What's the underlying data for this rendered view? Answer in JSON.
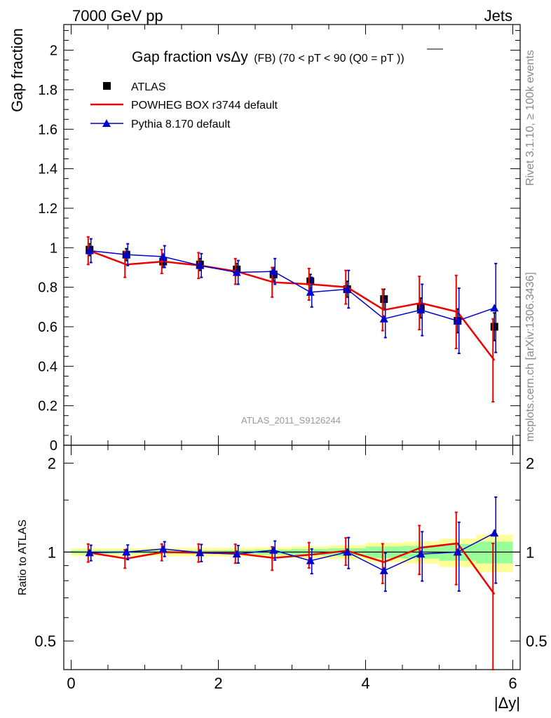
{
  "header": {
    "left": "7000 GeV pp",
    "right": "Jets"
  },
  "side": {
    "top": "Rivet 3.1.10, ≥ 100k events",
    "bottom": "mcplots.cern.ch [arXiv:1306.3436]"
  },
  "watermark": "ATLAS_2011_S9126244",
  "colors": {
    "atlas": "#000000",
    "powheg": "#ee0000",
    "pythia": "#0000cc",
    "band_inner": "#99ff99",
    "band_outer": "#ffff99"
  },
  "chart_data": [
    {
      "type": "line",
      "title_main": "Gap fraction vsΔy",
      "title_sub": "(FB) (70 < pT <  90 (Q0 =",
      "title_over": "pT",
      "title_end": "))",
      "ylabel": "Gap fraction",
      "xlim": [
        -0.1,
        6.1
      ],
      "ylim": [
        0,
        2.13
      ],
      "yticks": [
        0,
        0.2,
        0.4,
        0.6,
        0.8,
        1,
        1.2,
        1.4,
        1.6,
        1.8,
        2
      ],
      "ytick_labels": [
        "0",
        "0.2",
        "0.4",
        "0.6",
        "0.8",
        "1",
        "1.2",
        "1.4",
        "1.6",
        "1.8",
        "2"
      ],
      "legend": [
        "ATLAS",
        "POWHEG BOX r3744 default",
        "Pythia 8.170 default"
      ],
      "x": [
        0.25,
        0.75,
        1.25,
        1.75,
        2.25,
        2.75,
        3.25,
        3.75,
        4.25,
        4.75,
        5.25,
        5.75
      ],
      "series": [
        {
          "name": "ATLAS",
          "style": "marker",
          "values": [
            0.99,
            0.965,
            0.93,
            0.915,
            0.89,
            0.865,
            0.83,
            0.79,
            0.74,
            0.695,
            0.63,
            0.6
          ],
          "err": [
            0.03,
            0.03,
            0.03,
            0.03,
            0.03,
            0.035,
            0.035,
            0.04,
            0.05,
            0.05,
            0.06,
            0.07
          ]
        },
        {
          "name": "POWHEG BOX r3744 default",
          "style": "line",
          "values": [
            0.985,
            0.915,
            0.93,
            0.91,
            0.88,
            0.825,
            0.815,
            0.8,
            0.685,
            0.72,
            0.675,
            0.43
          ],
          "err": [
            0.07,
            0.065,
            0.06,
            0.065,
            0.065,
            0.075,
            0.08,
            0.085,
            0.105,
            0.135,
            0.185,
            0.21
          ]
        },
        {
          "name": "Pythia 8.170 default",
          "style": "triangle",
          "values": [
            0.985,
            0.965,
            0.955,
            0.91,
            0.875,
            0.88,
            0.775,
            0.79,
            0.64,
            0.685,
            0.63,
            0.695
          ],
          "err": [
            0.06,
            0.055,
            0.055,
            0.06,
            0.06,
            0.065,
            0.075,
            0.095,
            0.095,
            0.13,
            0.165,
            0.225
          ]
        }
      ]
    },
    {
      "type": "line",
      "ylabel": "Ratio to ATLAS",
      "xlabel": "|Δy|",
      "xlim": [
        -0.1,
        6.1
      ],
      "ylim": [
        0.4,
        2.3
      ],
      "yscale": "log",
      "yticks": [
        0.5,
        1,
        2
      ],
      "ytick_labels": [
        "0.5",
        "1",
        "2"
      ],
      "xticks": [
        0,
        2,
        4,
        6
      ],
      "xtick_labels": [
        "0",
        "2",
        "4",
        "6"
      ],
      "x": [
        0.25,
        0.75,
        1.25,
        1.75,
        2.25,
        2.75,
        3.25,
        3.75,
        4.25,
        4.75,
        5.25,
        5.75
      ],
      "band_inner": [
        0.012,
        0.012,
        0.013,
        0.014,
        0.015,
        0.02,
        0.025,
        0.03,
        0.045,
        0.05,
        0.065,
        0.085
      ],
      "band_outer": [
        0.03,
        0.03,
        0.032,
        0.033,
        0.034,
        0.04,
        0.045,
        0.055,
        0.075,
        0.085,
        0.11,
        0.145
      ],
      "series": [
        {
          "name": "POWHEG BOX r3744 default",
          "style": "line",
          "values": [
            0.995,
            0.95,
            1.0,
            0.995,
            0.99,
            0.955,
            0.98,
            1.01,
            0.925,
            1.035,
            1.07,
            0.72
          ],
          "err": [
            0.07,
            0.068,
            0.065,
            0.07,
            0.073,
            0.087,
            0.097,
            0.107,
            0.142,
            0.195,
            0.294,
            0.35
          ]
        },
        {
          "name": "Pythia 8.170 default",
          "style": "triangle",
          "values": [
            0.995,
            1.0,
            1.025,
            0.995,
            0.985,
            1.015,
            0.935,
            1.0,
            0.865,
            0.985,
            1.0,
            1.16
          ],
          "err": [
            0.06,
            0.057,
            0.059,
            0.066,
            0.067,
            0.075,
            0.09,
            0.12,
            0.128,
            0.187,
            0.262,
            0.375
          ]
        }
      ]
    }
  ]
}
